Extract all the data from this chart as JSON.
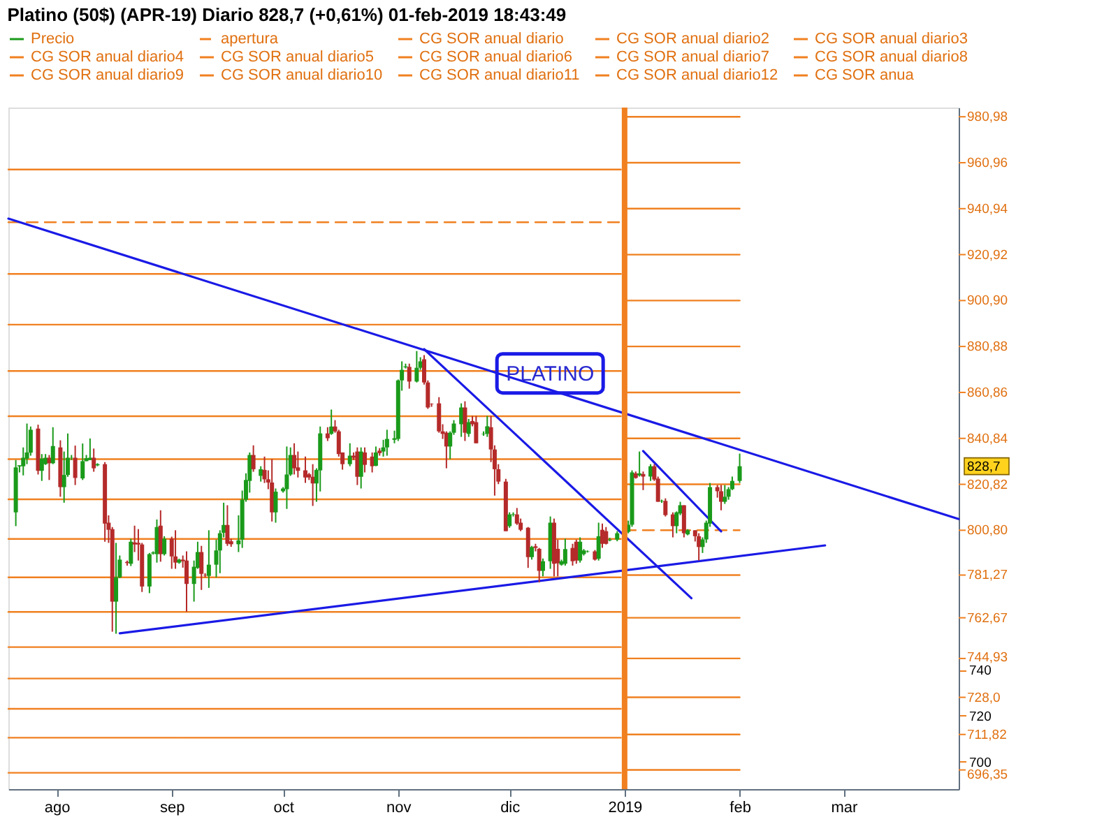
{
  "chart_data": {
    "type": "candlestick",
    "title": "Platino (50$) (APR-19)   Diario   828,7 (+0,61%)   01-feb-2019 18:43:49",
    "xlim": [
      "2018-07-19",
      "2019-04-01"
    ],
    "xticks": [
      {
        "value": "2018-08-01",
        "label": "ago"
      },
      {
        "value": "2018-09-01",
        "label": "sep"
      },
      {
        "value": "2018-10-01",
        "label": "oct"
      },
      {
        "value": "2018-11-01",
        "label": "nov"
      },
      {
        "value": "2018-12-01",
        "label": "dic"
      },
      {
        "value": "2019-01-01",
        "label": "2019"
      },
      {
        "value": "2019-02-01",
        "label": "feb"
      },
      {
        "value": "2019-03-01",
        "label": "mar"
      }
    ],
    "ylim": [
      688,
      985
    ],
    "yticks": [
      {
        "value": 980.98,
        "label": "980,98"
      },
      {
        "value": 960.96,
        "label": "960,96"
      },
      {
        "value": 940.94,
        "label": "940,94"
      },
      {
        "value": 920.92,
        "label": "920,92"
      },
      {
        "value": 900.9,
        "label": "900,90"
      },
      {
        "value": 880.88,
        "label": "880,88"
      },
      {
        "value": 860.86,
        "label": "860,86"
      },
      {
        "value": 840.84,
        "label": "840,84"
      },
      {
        "value": 820.82,
        "label": "820,82"
      },
      {
        "value": 800.8,
        "label": "800,80"
      },
      {
        "value": 781.27,
        "label": "781,27"
      },
      {
        "value": 762.67,
        "label": "762,67"
      },
      {
        "value": 744.93,
        "label": "744,93"
      },
      740,
      {
        "value": 728.0,
        "label": "728,0"
      },
      720,
      {
        "value": 711.82,
        "label": "711,82"
      },
      700,
      {
        "value": 696.35,
        "label": "696,35"
      }
    ],
    "legend": "top",
    "ref_lines": [
      {
        "axis": "x",
        "value": "2019-01-01",
        "color": "#f08020"
      }
    ],
    "annotations": [
      "PLATINO",
      "828,7"
    ],
    "series": [
      {
        "type": "candlestick",
        "name": "Precio",
        "colors": [
          "#1a9a1a",
          "#1a9a1a",
          "#1a9a1a",
          "#1a9a1a",
          "#1a9a1a",
          "#b52a2a",
          "#1a9a1a",
          "#1a9a1a",
          "#b52a2a",
          "#1a9a1a",
          "#b52a2a",
          "#1a9a1a",
          "#1a9a1a",
          "#1a9a1a",
          "#b52a2a",
          "#1a9a1a",
          "#1a9a1a",
          "#1a9a1a",
          "#b52a2a",
          "#1a9a1a",
          "#b52a2a",
          "#b52a2a",
          "#b52a2a",
          "#1a9a1a",
          "#1a9a1a",
          "#b52a2a",
          "#1a9a1a",
          "#b52a2a",
          "#b52a2a",
          "#b52a2a",
          "#1a9a1a",
          "#1a9a1a",
          "#1a9a1a",
          "#b52a2a",
          "#1a9a1a",
          "#b52a2a",
          "#b52a2a",
          "#1a9a1a",
          "#b52a2a",
          "#b52a2a",
          "#1a9a1a",
          "#1a9a1a",
          "#b52a2a",
          "#b52a2a",
          "#1a9a1a",
          "#1a9a1a",
          "#1a9a1a",
          "#1a9a1a",
          "#b52a2a",
          "#b52a2a",
          "#1a9a1a",
          "#1a9a1a",
          "#1a9a1a",
          "#1a9a1a",
          "#b52a2a",
          "#1a9a1a",
          "#b52a2a",
          "#b52a2a",
          "#b52a2a",
          "#1a9a1a",
          "#1a9a1a",
          "#1a9a1a",
          "#1a9a1a",
          "#b52a2a",
          "#b52a2a",
          "#b52a2a",
          "#b52a2a",
          "#b52a2a",
          "#1a9a1a",
          "#1a9a1a",
          "#b52a2a",
          "#1a9a1a",
          "#b52a2a",
          "#b52a2a",
          "#b52a2a",
          "#1a9a1a",
          "#b52a2a",
          "#b52a2a",
          "#1a9a1a",
          "#b52a2a",
          "#b52a2a",
          "#1a9a1a",
          "#b52a2a",
          "#1a9a1a",
          "#1a9a1a",
          "#1a9a1a",
          "#1a9a1a",
          "#1a9a1a",
          "#1a9a1a",
          "#b52a2a",
          "#1a9a1a",
          "#1a9a1a",
          "#b52a2a",
          "#b52a2a",
          "#b52a2a",
          "#b52a2a",
          "#b52a2a",
          "#b52a2a",
          "#1a9a1a",
          "#1a9a1a",
          "#1a9a1a",
          "#b52a2a",
          "#1a9a1a",
          "#b52a2a",
          "#b52a2a",
          "#1a9a1a",
          "#1a9a1a",
          "#b52a2a",
          "#b52a2a",
          "#b52a2a",
          "#b52a2a",
          "#1a9a1a",
          "#1a9a1a",
          "#b52a2a",
          "#b52a2a",
          "#b52a2a",
          "#1a9a1a",
          "#b52a2a",
          "#b52a2a",
          "#1a9a1a",
          "#1a9a1a",
          "#b52a2a",
          "#b52a2a",
          "#1a9a1a",
          "#1a9a1a",
          "#b52a2a",
          "#b52a2a",
          "#1a9a1a",
          "#1a9a1a",
          "#1a9a1a",
          "#b52a2a",
          "#1a9a1a",
          "#b52a2a",
          "#b52a2a",
          "#1a9a1a",
          "#1a9a1a",
          "#1a9a1a",
          "#1a9a1a",
          "#b52a2a",
          "#1a9a1a",
          "#b52a2a",
          "#1a9a1a",
          "#b52a2a",
          "#b52a2a",
          "#1a9a1a",
          "#b52a2a",
          "#b52a2a",
          "#1a9a1a",
          "#1a9a1a",
          "#b52a2a",
          "#1a9a1a",
          "#b52a2a",
          "#b52a2a",
          "#1a9a1a",
          "#1a9a1a",
          "#1a9a1a",
          "#b52a2a",
          "#b52a2a",
          "#1a9a1a",
          "#1a9a1a",
          "#1a9a1a",
          "#1a9a1a"
        ],
        "x": [
          "2018-07-21",
          "2018-07-22",
          "2018-07-23",
          "2018-07-24",
          "2018-07-25",
          "2018-07-27",
          "2018-07-28",
          "2018-07-29",
          "2018-07-30",
          "2018-07-31",
          "2018-08-02",
          "2018-08-03",
          "2018-08-04",
          "2018-08-05",
          "2018-08-06",
          "2018-08-08",
          "2018-08-09",
          "2018-08-10",
          "2018-08-11",
          "2018-08-12",
          "2018-08-14",
          "2018-08-15",
          "2018-08-16",
          "2018-08-17",
          "2018-08-18",
          "2018-08-20",
          "2018-08-21",
          "2018-08-22",
          "2018-08-23",
          "2018-08-24",
          "2018-08-26",
          "2018-08-27",
          "2018-08-28",
          "2018-08-29",
          "2018-08-30",
          "2018-09-01",
          "2018-09-02",
          "2018-09-03",
          "2018-09-04",
          "2018-09-05",
          "2018-09-07",
          "2018-09-08",
          "2018-09-09",
          "2018-09-10",
          "2018-09-11",
          "2018-09-13",
          "2018-09-14",
          "2018-09-15",
          "2018-09-16",
          "2018-09-17",
          "2018-09-19",
          "2018-09-20",
          "2018-09-21",
          "2018-09-22",
          "2018-09-23",
          "2018-09-25",
          "2018-09-26",
          "2018-09-27",
          "2018-09-28",
          "2018-09-29",
          "2018-10-01",
          "2018-10-02",
          "2018-10-03",
          "2018-10-04",
          "2018-10-05",
          "2018-10-07",
          "2018-10-08",
          "2018-10-09",
          "2018-10-10",
          "2018-10-11",
          "2018-10-13",
          "2018-10-14",
          "2018-10-15",
          "2018-10-16",
          "2018-10-17",
          "2018-10-19",
          "2018-10-20",
          "2018-10-21",
          "2018-10-22",
          "2018-10-23",
          "2018-10-25",
          "2018-10-26",
          "2018-10-27",
          "2018-10-28",
          "2018-10-29",
          "2018-10-31",
          "2018-11-01",
          "2018-11-02",
          "2018-11-03",
          "2018-11-04",
          "2018-11-06",
          "2018-11-07",
          "2018-11-08",
          "2018-11-09",
          "2018-11-10",
          "2018-11-12",
          "2018-11-13",
          "2018-11-14",
          "2018-11-15",
          "2018-11-16",
          "2018-11-18",
          "2018-11-19",
          "2018-11-20",
          "2018-11-21",
          "2018-11-22",
          "2018-11-24",
          "2018-11-25",
          "2018-11-26",
          "2018-11-27",
          "2018-11-28",
          "2018-11-30",
          "2018-12-01",
          "2018-12-02",
          "2018-12-03",
          "2018-12-04",
          "2018-12-06",
          "2018-12-07",
          "2018-12-08",
          "2018-12-09",
          "2018-12-10",
          "2018-12-12",
          "2018-12-13",
          "2018-12-14",
          "2018-12-15",
          "2018-12-16",
          "2018-12-18",
          "2018-12-19",
          "2018-12-20",
          "2018-12-21",
          "2018-12-22",
          "2018-12-24",
          "2018-12-25",
          "2018-12-26",
          "2018-12-27",
          "2018-12-28",
          "2018-12-30",
          "2019-01-02",
          "2019-01-03",
          "2019-01-04",
          "2019-01-05",
          "2019-01-06",
          "2019-01-08",
          "2019-01-09",
          "2019-01-10",
          "2019-01-11",
          "2019-01-12",
          "2019-01-14",
          "2019-01-15",
          "2019-01-16",
          "2019-01-17",
          "2019-01-18",
          "2019-01-20",
          "2019-01-21",
          "2019-01-22",
          "2019-01-23",
          "2019-01-24",
          "2019-01-26",
          "2019-01-27",
          "2019-01-28",
          "2019-01-29",
          "2019-01-30",
          "2019-02-01"
        ],
        "ohlc": [
          [
            808.6,
            831.4,
            802.6,
            828.2
          ],
          [
            828.6,
            829.1,
            826.0,
            829.1
          ],
          [
            828.7,
            836.9,
            824.7,
            832.4
          ],
          [
            832.0,
            847.3,
            829.6,
            834.7
          ],
          [
            834.6,
            846.0,
            833.3,
            844.6
          ],
          [
            845.1,
            846.8,
            825.1,
            826.7
          ],
          [
            826.7,
            834.0,
            822.3,
            832.0
          ],
          [
            829.6,
            834.0,
            829.3,
            832.4
          ],
          [
            832.4,
            833.6,
            822.7,
            830.0
          ],
          [
            830.0,
            845.7,
            829.6,
            837.5
          ],
          [
            836.9,
            840.0,
            815.4,
            819.6
          ],
          [
            819.6,
            835.1,
            812.8,
            824.9
          ],
          [
            824.9,
            843.0,
            824.1,
            832.4
          ],
          [
            832.4,
            833.6,
            831.4,
            832.5
          ],
          [
            832.4,
            837.7,
            820.5,
            823.6
          ],
          [
            823.4,
            838.6,
            822.7,
            830.9
          ],
          [
            830.9,
            833.6,
            830.9,
            832.2
          ],
          [
            831.4,
            840.8,
            831.4,
            832.4
          ],
          [
            832.4,
            836.4,
            826.3,
            827.8
          ],
          [
            829.1,
            830.0,
            828.7,
            829.6
          ],
          [
            829.6,
            830.5,
            795.8,
            803.7
          ],
          [
            804.1,
            807.3,
            795.3,
            801.0
          ],
          [
            801.3,
            802.2,
            756.6,
            769.7
          ],
          [
            769.7,
            795.3,
            755.7,
            780.3
          ],
          [
            780.3,
            789.8,
            779.9,
            788.0
          ],
          [
            787.0,
            787.6,
            785.4,
            786.5
          ],
          [
            786.2,
            797.1,
            785.2,
            795.8
          ],
          [
            795.5,
            802.8,
            791.3,
            794.6
          ],
          [
            795.3,
            801.3,
            787.6,
            794.6
          ],
          [
            794.6,
            795.3,
            773.9,
            776.3
          ],
          [
            776.3,
            790.9,
            773.4,
            790.4
          ],
          [
            790.7,
            791.6,
            790.2,
            791.1
          ],
          [
            790.4,
            805.5,
            786.7,
            802.2
          ],
          [
            802.8,
            809.5,
            787.1,
            790.4
          ],
          [
            790.4,
            798.2,
            789.8,
            797.1
          ],
          [
            797.1,
            798.0,
            784.0,
            789.4
          ],
          [
            789.4,
            800.8,
            784.0,
            786.7
          ],
          [
            786.7,
            788.4,
            786.2,
            788.0
          ],
          [
            788.0,
            789.8,
            784.5,
            787.3
          ],
          [
            787.6,
            791.6,
            765.3,
            777.4
          ],
          [
            777.4,
            787.6,
            769.7,
            784.9
          ],
          [
            784.4,
            795.8,
            784.0,
            791.3
          ],
          [
            791.3,
            794.0,
            774.8,
            781.8
          ],
          [
            781.4,
            782.1,
            780.3,
            781.2
          ],
          [
            780.9,
            800.8,
            775.7,
            785.8
          ],
          [
            785.8,
            796.7,
            780.3,
            792.0
          ],
          [
            792.0,
            800.8,
            782.1,
            799.5
          ],
          [
            799.7,
            812.8,
            797.7,
            803.1
          ],
          [
            803.1,
            811.7,
            794.0,
            794.9
          ],
          [
            796.0,
            797.1,
            793.6,
            794.7
          ],
          [
            794.7,
            807.3,
            791.3,
            796.4
          ],
          [
            796.7,
            818.1,
            793.1,
            814.1
          ],
          [
            814.1,
            825.6,
            813.2,
            822.7
          ],
          [
            822.3,
            834.7,
            817.2,
            833.6
          ],
          [
            833.6,
            837.8,
            826.3,
            827.4
          ],
          [
            824.5,
            828.7,
            822.0,
            827.4
          ],
          [
            827.1,
            832.9,
            821.4,
            823.0
          ],
          [
            823.0,
            826.9,
            818.7,
            821.6
          ],
          [
            821.6,
            831.8,
            804.6,
            808.6
          ],
          [
            808.6,
            819.0,
            804.1,
            817.6
          ],
          [
            817.8,
            819.6,
            817.2,
            819.0
          ],
          [
            818.7,
            837.3,
            810.1,
            825.1
          ],
          [
            825.1,
            836.9,
            824.5,
            833.6
          ],
          [
            833.6,
            838.7,
            825.1,
            827.8
          ],
          [
            828.2,
            835.1,
            823.8,
            826.7
          ],
          [
            826.9,
            832.9,
            821.4,
            823.8
          ],
          [
            825.2,
            825.8,
            822.7,
            823.8
          ],
          [
            824.1,
            829.6,
            811.4,
            821.2
          ],
          [
            821.2,
            827.8,
            813.2,
            827.1
          ],
          [
            826.9,
            846.0,
            817.7,
            843.0
          ],
          [
            843.0,
            845.7,
            839.7,
            840.9
          ],
          [
            842.8,
            853.4,
            842.4,
            846.0
          ],
          [
            846.0,
            848.8,
            843.3,
            843.9
          ],
          [
            843.9,
            844.6,
            832.9,
            834.0
          ],
          [
            834.7,
            834.7,
            827.2,
            829.6
          ],
          [
            829.6,
            838.7,
            828.7,
            833.3
          ],
          [
            833.3,
            834.7,
            831.4,
            832.4
          ],
          [
            835.1,
            836.9,
            820.5,
            824.1
          ],
          [
            824.1,
            836.9,
            819.0,
            835.1
          ],
          [
            834.7,
            836.9,
            826.0,
            829.3
          ],
          [
            832.9,
            834.7,
            826.0,
            828.7
          ],
          [
            828.9,
            837.3,
            828.7,
            834.7
          ],
          [
            835.5,
            836.6,
            833.3,
            834.4
          ],
          [
            835.1,
            840.2,
            832.9,
            836.9
          ],
          [
            836.9,
            844.6,
            833.3,
            840.6
          ],
          [
            840.2,
            844.2,
            838.7,
            840.9
          ],
          [
            840.6,
            866.5,
            839.7,
            866.1
          ],
          [
            866.1,
            874.4,
            861.6,
            870.7
          ],
          [
            871.8,
            873.4,
            871.3,
            872.2
          ],
          [
            872.0,
            873.4,
            862.5,
            865.6
          ],
          [
            865.6,
            878.9,
            865.2,
            871.6
          ],
          [
            871.6,
            876.2,
            870.7,
            874.4
          ],
          [
            875.3,
            877.1,
            864.3,
            865.2
          ],
          [
            865.2,
            866.1,
            853.7,
            854.3
          ],
          [
            855.9,
            856.1,
            854.6,
            855.7
          ],
          [
            856.1,
            858.8,
            843.3,
            843.9
          ],
          [
            843.9,
            847.0,
            840.6,
            842.8
          ],
          [
            843.3,
            843.9,
            827.8,
            837.3
          ],
          [
            837.3,
            843.9,
            831.8,
            843.3
          ],
          [
            843.3,
            848.8,
            842.4,
            847.3
          ],
          [
            847.0,
            856.1,
            841.5,
            854.3
          ],
          [
            854.3,
            857.0,
            839.7,
            843.3
          ],
          [
            842.8,
            849.3,
            841.5,
            847.9
          ],
          [
            848.4,
            850.6,
            846.1,
            847.0
          ],
          [
            847.9,
            850.6,
            838.7,
            838.7
          ],
          [
            842.6,
            843.9,
            842.0,
            842.8
          ],
          [
            842.8,
            850.6,
            841.5,
            846.1
          ],
          [
            845.7,
            850.6,
            830.5,
            836.0
          ],
          [
            836.0,
            837.8,
            815.9,
            827.4
          ],
          [
            827.4,
            829.6,
            820.9,
            822.0
          ],
          [
            822.0,
            823.2,
            800.4,
            800.4
          ],
          [
            802.6,
            808.6,
            801.9,
            807.7
          ],
          [
            807.7,
            808.6,
            806.8,
            807.9
          ],
          [
            807.7,
            810.5,
            803.1,
            803.7
          ],
          [
            804.1,
            805.9,
            800.4,
            801.0
          ],
          [
            801.9,
            802.2,
            784.4,
            789.1
          ],
          [
            789.1,
            794.0,
            788.0,
            793.5
          ],
          [
            793.8,
            794.9,
            791.6,
            793.1
          ],
          [
            792.7,
            793.1,
            778.1,
            783.1
          ],
          [
            783.1,
            788.5,
            780.7,
            787.3
          ],
          [
            787.3,
            806.8,
            784.0,
            804.1
          ],
          [
            804.1,
            805.9,
            780.7,
            786.2
          ],
          [
            792.7,
            796.7,
            780.7,
            786.4
          ],
          [
            785.8,
            788.0,
            785.4,
            787.3
          ],
          [
            786.2,
            797.1,
            785.4,
            792.6
          ],
          [
            793.1,
            794.9,
            785.4,
            787.3
          ],
          [
            795.8,
            796.7,
            786.2,
            787.6
          ],
          [
            787.6,
            797.7,
            786.7,
            795.8
          ],
          [
            790.4,
            792.6,
            789.8,
            792.0
          ],
          [
            791.4,
            792.0,
            791.1,
            791.6
          ],
          [
            791.6,
            792.2,
            787.6,
            788.0
          ],
          [
            788.4,
            804.1,
            787.6,
            798.2
          ],
          [
            801.0,
            803.7,
            793.1,
            794.9
          ],
          [
            800.4,
            802.2,
            794.6,
            794.9
          ],
          [
            796.4,
            797.5,
            796.0,
            796.7
          ],
          [
            796.7,
            800.4,
            796.0,
            799.5
          ],
          [
            800.1,
            805.0,
            799.5,
            803.2
          ],
          [
            803.2,
            826.9,
            802.3,
            826.0
          ],
          [
            825.6,
            826.4,
            823.3,
            823.6
          ],
          [
            824.7,
            835.1,
            824.2,
            825.6
          ],
          [
            825.3,
            826.4,
            818.3,
            824.2
          ],
          [
            824.2,
            829.6,
            822.3,
            828.7
          ],
          [
            828.7,
            829.6,
            822.3,
            822.9
          ],
          [
            823.3,
            824.2,
            813.2,
            813.2
          ],
          [
            813.4,
            814.1,
            812.8,
            813.6
          ],
          [
            813.6,
            814.7,
            806.8,
            807.4
          ],
          [
            807.7,
            808.6,
            797.7,
            802.6
          ],
          [
            802.6,
            809.0,
            799.5,
            808.6
          ],
          [
            808.1,
            813.2,
            807.4,
            811.7
          ],
          [
            811.7,
            811.7,
            797.7,
            799.5
          ],
          [
            799.0,
            801.3,
            798.6,
            800.8
          ],
          [
            800.8,
            800.8,
            795.9,
            798.2
          ],
          [
            798.2,
            799.5,
            787.6,
            793.5
          ],
          [
            793.5,
            797.7,
            790.9,
            796.8
          ],
          [
            796.8,
            805.0,
            795.3,
            804.1
          ],
          [
            803.7,
            821.4,
            802.3,
            819.6
          ],
          [
            819.6,
            820.5,
            815.0,
            817.8
          ],
          [
            817.8,
            820.5,
            809.5,
            813.2
          ],
          [
            813.2,
            820.5,
            812.3,
            815.4
          ],
          [
            815.4,
            819.6,
            814.1,
            818.7
          ],
          [
            818.7,
            824.2,
            818.3,
            822.3
          ],
          [
            822.3,
            834.2,
            821.4,
            828.7
          ]
        ]
      },
      {
        "type": "line",
        "name": "apertura",
        "color": "#f08020",
        "line_style": "dashed",
        "x": [
          "2019-01-01",
          "2019-02-01"
        ],
        "values": [
          800.8,
          800.8
        ]
      },
      {
        "type": "line",
        "color": "#f08020",
        "line_style": "dashed",
        "x": [
          "2018-07-19",
          "2018-12-31"
        ],
        "values": [
          935.0,
          935.0
        ]
      },
      {
        "type": "line",
        "name": "CG SOR anual diario",
        "color": "#f08020",
        "x": [
          "2019-01-01",
          "2019-02-01"
        ],
        "values": [
          980.98,
          980.98
        ]
      },
      {
        "type": "line",
        "name": "CG SOR anual diario2",
        "color": "#f08020",
        "x": [
          "2019-01-01",
          "2019-02-01"
        ],
        "values": [
          960.96,
          960.96
        ]
      },
      {
        "type": "line",
        "name": "CG SOR anual diario3",
        "color": "#f08020",
        "x": [
          "2019-01-01",
          "2019-02-01"
        ],
        "values": [
          940.94,
          940.94
        ]
      },
      {
        "type": "line",
        "name": "CG SOR anual diario4",
        "color": "#f08020",
        "x": [
          "2019-01-01",
          "2019-02-01"
        ],
        "values": [
          920.92,
          920.92
        ]
      },
      {
        "type": "line",
        "name": "CG SOR anual diario5",
        "color": "#f08020",
        "x": [
          "2019-01-01",
          "2019-02-01"
        ],
        "values": [
          900.9,
          900.9
        ]
      },
      {
        "type": "line",
        "name": "CG SOR anual diario6",
        "color": "#f08020",
        "x": [
          "2019-01-01",
          "2019-02-01"
        ],
        "values": [
          880.88,
          880.88
        ]
      },
      {
        "type": "line",
        "name": "CG SOR anual diario7",
        "color": "#f08020",
        "x": [
          "2019-01-01",
          "2019-02-01"
        ],
        "values": [
          860.86,
          860.86
        ]
      },
      {
        "type": "line",
        "name": "CG SOR anual diario8",
        "color": "#f08020",
        "x": [
          "2019-01-01",
          "2019-02-01"
        ],
        "values": [
          840.84,
          840.84
        ]
      },
      {
        "type": "line",
        "name": "CG SOR anual diario9",
        "color": "#f08020",
        "x": [
          "2019-01-01",
          "2019-02-01"
        ],
        "values": [
          820.82,
          820.82
        ]
      },
      {
        "type": "line",
        "name": "CG SOR anual diario10",
        "color": "#f08020",
        "x": [
          "2019-01-01",
          "2019-02-01"
        ],
        "values": [
          781.27,
          781.27
        ]
      },
      {
        "type": "line",
        "name": "CG SOR anual diario11",
        "color": "#f08020",
        "x": [
          "2019-01-01",
          "2019-02-01"
        ],
        "values": [
          762.67,
          762.67
        ]
      },
      {
        "type": "line",
        "name": "CG SOR anual diario12",
        "color": "#f08020",
        "x": [
          "2019-01-01",
          "2019-02-01"
        ],
        "values": [
          744.93,
          744.93
        ]
      },
      {
        "type": "line",
        "name": "CG SOR anua",
        "color": "#f08020",
        "x": [
          "2019-01-01",
          "2019-02-01"
        ],
        "values": [
          728.0,
          728.0
        ]
      },
      {
        "type": "line",
        "color": "#f08020",
        "x": [
          "2019-01-01",
          "2019-02-01"
        ],
        "values": [
          711.82,
          711.82
        ]
      },
      {
        "type": "line",
        "color": "#f08020",
        "x": [
          "2019-01-01",
          "2019-02-01"
        ],
        "values": [
          696.35,
          696.35
        ]
      },
      {
        "type": "line",
        "color": "#f08020",
        "x": [
          "2018-07-19",
          "2018-12-31"
        ],
        "values": [
          958.0,
          958.0
        ]
      },
      {
        "type": "line",
        "color": "#f08020",
        "x": [
          "2018-07-19",
          "2018-12-31"
        ],
        "values": [
          912.5,
          912.5
        ]
      },
      {
        "type": "line",
        "color": "#f08020",
        "x": [
          "2018-07-19",
          "2018-12-31"
        ],
        "values": [
          890.4,
          890.4
        ]
      },
      {
        "type": "line",
        "color": "#f08020",
        "x": [
          "2018-07-19",
          "2018-12-31"
        ],
        "values": [
          870.2,
          870.2
        ]
      },
      {
        "type": "line",
        "color": "#f08020",
        "x": [
          "2018-07-19",
          "2018-12-31"
        ],
        "values": [
          850.5,
          850.5
        ]
      },
      {
        "type": "line",
        "color": "#f08020",
        "x": [
          "2018-07-19",
          "2018-12-31"
        ],
        "values": [
          831.8,
          831.8
        ]
      },
      {
        "type": "line",
        "color": "#f08020",
        "x": [
          "2018-07-19",
          "2018-12-31"
        ],
        "values": [
          814.3,
          814.3
        ]
      },
      {
        "type": "line",
        "color": "#f08020",
        "x": [
          "2018-07-19",
          "2018-12-31"
        ],
        "values": [
          797.0,
          797.0
        ]
      },
      {
        "type": "line",
        "color": "#f08020",
        "x": [
          "2018-07-19",
          "2018-12-31"
        ],
        "values": [
          780.3,
          780.3
        ]
      },
      {
        "type": "line",
        "color": "#f08020",
        "x": [
          "2018-07-19",
          "2018-12-31"
        ],
        "values": [
          765.2,
          765.2
        ]
      },
      {
        "type": "line",
        "color": "#f08020",
        "x": [
          "2018-07-19",
          "2018-12-31"
        ],
        "values": [
          749.9,
          749.9
        ]
      },
      {
        "type": "line",
        "color": "#f08020",
        "x": [
          "2018-07-19",
          "2018-12-31"
        ],
        "values": [
          736.2,
          736.2
        ]
      },
      {
        "type": "line",
        "color": "#f08020",
        "x": [
          "2018-07-19",
          "2018-12-31"
        ],
        "values": [
          723.0,
          723.0
        ]
      },
      {
        "type": "line",
        "color": "#f08020",
        "x": [
          "2018-07-19",
          "2018-12-31"
        ],
        "values": [
          710.4,
          710.4
        ]
      },
      {
        "type": "line",
        "color": "#f08020",
        "x": [
          "2018-07-19",
          "2018-12-31"
        ],
        "values": [
          695.1,
          695.1
        ]
      },
      {
        "type": "line",
        "color": "#1a1ae6",
        "x": [
          "2018-07-19",
          "2019-04-01"
        ],
        "values": [
          936.6,
          805.7
        ]
      },
      {
        "type": "line",
        "color": "#1a1ae6",
        "x": [
          "2018-11-08",
          "2019-01-19"
        ],
        "values": [
          879.7,
          771.2
        ]
      },
      {
        "type": "line",
        "color": "#1a1ae6",
        "x": [
          "2018-08-18",
          "2019-02-24"
        ],
        "values": [
          755.9,
          794.2
        ]
      },
      {
        "type": "line",
        "color": "#1a1ae6",
        "x": [
          "2019-01-06",
          "2019-01-27"
        ],
        "values": [
          835.3,
          800.3
        ]
      }
    ]
  }
}
